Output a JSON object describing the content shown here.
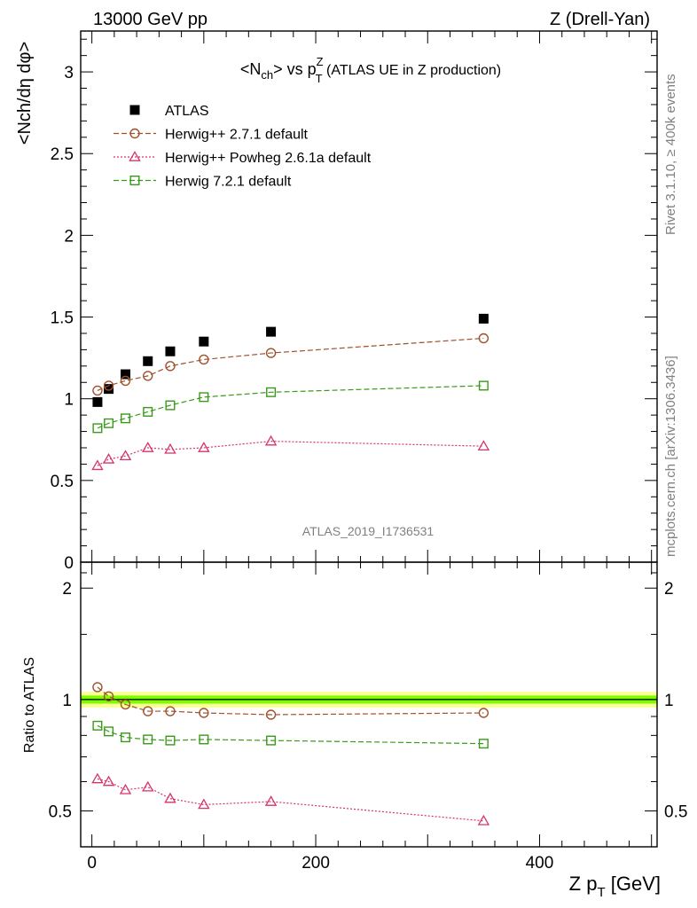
{
  "header": {
    "left": "13000 GeV pp",
    "right": "Z (Drell-Yan)"
  },
  "side_labels": {
    "rivet": "Rivet 3.1.10, ≥ 400k events",
    "mcplots": "mcplots.cern.ch [arXiv:1306.3436]"
  },
  "watermark": "ATLAS_2019_I1736531",
  "chart_data": [
    {
      "type": "scatter",
      "title": "<Nch> vs pTZ (ATLAS UE in Z production)",
      "title_parts": {
        "main": "<N",
        "sub1": "ch",
        "mid": "> vs p",
        "sup": "Z",
        "sub2": "T",
        "tail": " (ATLAS UE in Z production)"
      },
      "ylabel": "<Nch/dη dφ>",
      "ylim": [
        0,
        3.25
      ],
      "yticks": [
        0,
        0.5,
        1,
        1.5,
        2,
        2.5,
        3
      ],
      "ytick_labels": [
        "0",
        "0.5",
        "1",
        "1.5",
        "2",
        "2.5",
        "3"
      ],
      "xlim": [
        -10,
        505
      ],
      "legend_position": "top-left",
      "series": [
        {
          "name": "ATLAS",
          "marker": "filled-square",
          "color": "#000000",
          "x": [
            5,
            15,
            30,
            50,
            70,
            100,
            160,
            350
          ],
          "y": [
            0.98,
            1.06,
            1.15,
            1.23,
            1.29,
            1.35,
            1.41,
            1.49
          ]
        },
        {
          "name": "Herwig++ 2.7.1 default",
          "marker": "open-circle",
          "line": "dashed",
          "color": "#a0522d",
          "x": [
            5,
            15,
            30,
            50,
            70,
            100,
            160,
            350
          ],
          "y": [
            1.05,
            1.08,
            1.11,
            1.14,
            1.2,
            1.24,
            1.28,
            1.37
          ]
        },
        {
          "name": "Herwig++ Powheg 2.6.1a default",
          "marker": "open-triangle",
          "line": "dotted",
          "color": "#d6336c",
          "x": [
            5,
            15,
            30,
            50,
            70,
            100,
            160,
            350
          ],
          "y": [
            0.59,
            0.63,
            0.65,
            0.7,
            0.69,
            0.7,
            0.74,
            0.71
          ]
        },
        {
          "name": "Herwig 7.2.1 default",
          "marker": "open-square",
          "line": "dashed",
          "color": "#3a9a1a",
          "x": [
            5,
            15,
            30,
            50,
            70,
            100,
            160,
            350
          ],
          "y": [
            0.82,
            0.85,
            0.88,
            0.92,
            0.96,
            1.01,
            1.04,
            1.08
          ]
        }
      ]
    },
    {
      "type": "scatter",
      "title": "",
      "ylabel": "Ratio to ATLAS",
      "xlabel": "Z pT [GeV]",
      "xlabel_parts": {
        "main": "Z p",
        "sub": "T",
        "tail": " [GeV]"
      },
      "ylim": [
        0.4,
        2.35
      ],
      "log_y": true,
      "yticks": [
        0.5,
        1,
        2
      ],
      "ytick_labels": [
        "0.5",
        "1",
        "2"
      ],
      "xlim": [
        -10,
        505
      ],
      "xticks": [
        0,
        200,
        400
      ],
      "xtick_labels": [
        "0",
        "200",
        "400"
      ],
      "band": {
        "inner": [
          0.975,
          1.025
        ],
        "outer": [
          0.95,
          1.05
        ],
        "inner_color": "#7cfc00",
        "outer_color": "#fbff9a"
      },
      "series": [
        {
          "name": "Herwig++ 2.7.1 default",
          "marker": "open-circle",
          "line": "dashed",
          "color": "#a0522d",
          "x": [
            5,
            15,
            30,
            50,
            70,
            100,
            160,
            350
          ],
          "y": [
            1.08,
            1.02,
            0.97,
            0.93,
            0.93,
            0.92,
            0.91,
            0.92
          ]
        },
        {
          "name": "Herwig 7.2.1 default",
          "marker": "open-square",
          "line": "dashed",
          "color": "#3a9a1a",
          "x": [
            5,
            15,
            30,
            50,
            70,
            100,
            160,
            350
          ],
          "y": [
            0.85,
            0.82,
            0.79,
            0.78,
            0.775,
            0.78,
            0.775,
            0.76
          ]
        },
        {
          "name": "Herwig++ Powheg 2.6.1a default",
          "marker": "open-triangle",
          "line": "dotted",
          "color": "#d6336c",
          "x": [
            5,
            15,
            30,
            50,
            70,
            100,
            160,
            350
          ],
          "y": [
            0.61,
            0.6,
            0.57,
            0.58,
            0.54,
            0.52,
            0.53,
            0.47
          ]
        }
      ]
    }
  ]
}
